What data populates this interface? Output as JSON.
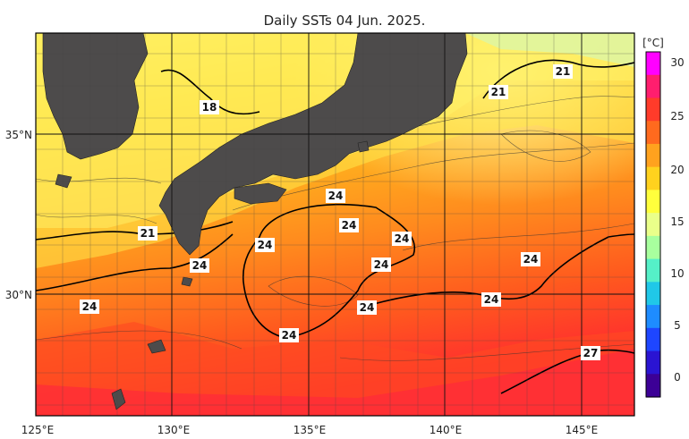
{
  "title": "Daily SSTs 04 Jun. 2025.",
  "longitude_ticks": [
    "125°E",
    "130°E",
    "135°E",
    "140°E",
    "145°E"
  ],
  "latitude_ticks": [
    "35°N",
    "30°N"
  ],
  "colorbar": {
    "unit": "[°C]",
    "ticks": [
      "30",
      "25",
      "20",
      "15",
      "10",
      "5",
      "0"
    ],
    "colors": [
      "#ff00ff",
      "#ff1e6e",
      "#ff3b2a",
      "#ff6a1e",
      "#ffa21e",
      "#ffd21e",
      "#ffff3c",
      "#eaff8a",
      "#a8ff9e",
      "#55f0c8",
      "#20c8e8",
      "#1e8cff",
      "#1e46ff",
      "#2a14d2",
      "#3c0096"
    ]
  },
  "map": {
    "land_color": "#4d4b4b",
    "isotherm_labels": [
      "18",
      "21",
      "21",
      "21",
      "24",
      "24",
      "24",
      "24",
      "24",
      "24",
      "24",
      "24",
      "24",
      "24",
      "27"
    ]
  }
}
